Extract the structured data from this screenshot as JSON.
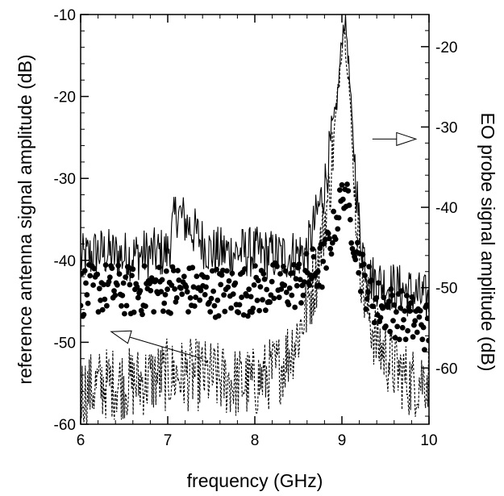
{
  "chart_data": {
    "type": "line",
    "xlabel": "frequency (GHz)",
    "ylabel_left": "reference antenna signal amplitude (dB)",
    "ylabel_right": "EO probe signal amplitude (dB)",
    "xlim": [
      6,
      10
    ],
    "ylim_left": [
      -60,
      -10
    ],
    "ylim_right": [
      -67,
      -16
    ],
    "x_ticks": [
      "6",
      "7",
      "8",
      "9",
      "10"
    ],
    "y_ticks_left": [
      "-10",
      "-20",
      "-30",
      "-40",
      "-50",
      "-60"
    ],
    "y_ticks_right": [
      "-20",
      "-30",
      "-40",
      "-50",
      "-60"
    ],
    "grid": false,
    "series": [
      {
        "axis": "left",
        "style": "solid",
        "description_points": [
          [
            6.0,
            -40
          ],
          [
            6.2,
            -39
          ],
          [
            6.5,
            -39.5
          ],
          [
            7.0,
            -39
          ],
          [
            7.1,
            -34
          ],
          [
            7.5,
            -39
          ],
          [
            8.0,
            -39
          ],
          [
            8.3,
            -39.5
          ],
          [
            8.6,
            -39
          ],
          [
            8.8,
            -31
          ],
          [
            8.9,
            -24
          ],
          [
            8.95,
            -20
          ],
          [
            9.0,
            -13
          ],
          [
            9.03,
            -10.5
          ],
          [
            9.06,
            -13
          ],
          [
            9.12,
            -24
          ],
          [
            9.2,
            -36
          ],
          [
            9.3,
            -42
          ],
          [
            9.5,
            -43
          ],
          [
            9.8,
            -44
          ],
          [
            10.0,
            -45
          ]
        ]
      },
      {
        "axis": "left",
        "style": "dashed",
        "description_points": [
          [
            6.0,
            -56
          ],
          [
            6.3,
            -55
          ],
          [
            6.6,
            -55
          ],
          [
            7.0,
            -54
          ],
          [
            7.4,
            -54
          ],
          [
            7.8,
            -55
          ],
          [
            8.0,
            -55
          ],
          [
            8.3,
            -53
          ],
          [
            8.5,
            -49
          ],
          [
            8.7,
            -42
          ],
          [
            8.85,
            -32
          ],
          [
            8.95,
            -20
          ],
          [
            9.02,
            -11
          ],
          [
            9.08,
            -18
          ],
          [
            9.15,
            -33
          ],
          [
            9.25,
            -44
          ],
          [
            9.4,
            -50
          ],
          [
            9.6,
            -53
          ],
          [
            9.8,
            -55
          ],
          [
            10.0,
            -54
          ]
        ]
      },
      {
        "axis": "right",
        "style": "markers",
        "description_points": [
          [
            6.0,
            -50.5
          ],
          [
            6.3,
            -50
          ],
          [
            6.6,
            -50.5
          ],
          [
            7.0,
            -50
          ],
          [
            7.4,
            -50.5
          ],
          [
            7.8,
            -50.5
          ],
          [
            8.2,
            -50
          ],
          [
            8.5,
            -49.5
          ],
          [
            8.8,
            -47
          ],
          [
            8.95,
            -41
          ],
          [
            9.03,
            -37.5
          ],
          [
            9.1,
            -42
          ],
          [
            9.25,
            -49
          ],
          [
            9.4,
            -52
          ],
          [
            9.6,
            -53
          ],
          [
            9.8,
            -54
          ],
          [
            10.0,
            -55
          ]
        ]
      }
    ],
    "annotations": [
      {
        "arrow": "right",
        "from": [
          9.35,
          -31.5
        ],
        "to": [
          9.85,
          -31.5
        ]
      },
      {
        "arrow": "left",
        "from": [
          7.4,
          -52
        ],
        "to": [
          6.35,
          -48.7
        ]
      }
    ]
  }
}
